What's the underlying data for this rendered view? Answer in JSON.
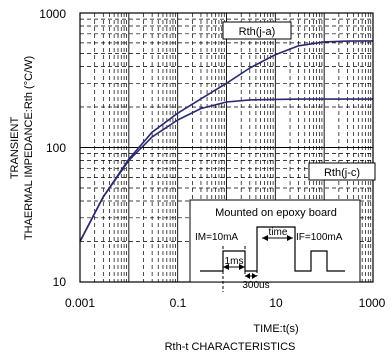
{
  "chart_data": {
    "type": "line",
    "title": "",
    "caption": "Rth-t CHARACTERISTICS",
    "xlabel": "TIME:t(s)",
    "ylabel_line1": "TRANSIENT",
    "ylabel_line2": "THAERMAL IMPEDANCE:Rth (°C/W)",
    "x_scale": "log",
    "y_scale": "log",
    "xlim": [
      0.001,
      1000
    ],
    "ylim": [
      10,
      1000
    ],
    "x_ticks": [
      "0.001",
      "0.1",
      "10",
      "1000"
    ],
    "y_ticks": [
      "10",
      "100",
      "1000"
    ],
    "grid": true,
    "series": [
      {
        "name": "Rth(j-a)",
        "x": [
          0.001,
          0.003,
          0.01,
          0.03,
          0.1,
          0.3,
          1,
          3,
          10,
          30,
          100,
          300,
          1000
        ],
        "y": [
          20,
          43,
          82,
          130,
          180,
          230,
          300,
          390,
          490,
          570,
          610,
          618,
          620
        ]
      },
      {
        "name": "Rth(j-c)",
        "x": [
          0.001,
          0.003,
          0.01,
          0.03,
          0.1,
          0.3,
          1,
          3,
          10,
          30,
          100,
          300,
          1000
        ],
        "y": [
          20,
          43,
          80,
          120,
          160,
          195,
          218,
          226,
          228,
          229,
          229,
          229,
          229
        ]
      }
    ],
    "inset": {
      "title": "Mounted on epoxy board",
      "im_label": "IM=10mA",
      "if_label": "IF=100mA",
      "ms_label": "1ms",
      "us_label": "300us",
      "time_label": "time"
    },
    "colors": {
      "curve": "#2a2a6e",
      "axis": "#000000",
      "grid": "#000000"
    }
  }
}
